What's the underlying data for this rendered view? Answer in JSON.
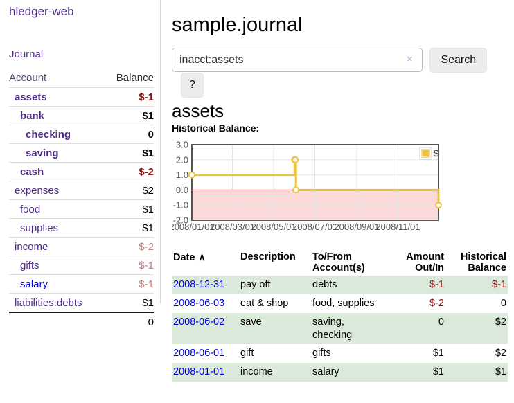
{
  "app": {
    "title": "hledger-web"
  },
  "sidebar": {
    "journal_link": "Journal",
    "accounts_table": {
      "account_header": "Account",
      "balance_header": "Balance",
      "rows": [
        {
          "name": "assets",
          "indent": 1,
          "bold": true,
          "balance": "$-1",
          "balance_style": "negative"
        },
        {
          "name": "bank",
          "indent": 2,
          "bold": true,
          "balance": "$1",
          "balance_style": "positive"
        },
        {
          "name": "checking",
          "indent": 3,
          "bold": true,
          "balance": "0",
          "balance_style": "positive"
        },
        {
          "name": "saving",
          "indent": 3,
          "bold": true,
          "balance": "$1",
          "balance_style": "positive"
        },
        {
          "name": "cash",
          "indent": 2,
          "bold": true,
          "balance": "$-2",
          "balance_style": "negative"
        },
        {
          "name": "expenses",
          "indent": 1,
          "bold": false,
          "balance": "$2",
          "balance_style": "positive"
        },
        {
          "name": "food",
          "indent": 2,
          "bold": false,
          "balance": "$1",
          "balance_style": "positive"
        },
        {
          "name": "supplies",
          "indent": 2,
          "bold": false,
          "balance": "$1",
          "balance_style": "positive"
        },
        {
          "name": "income",
          "indent": 1,
          "bold": false,
          "balance": "$-2",
          "balance_style": "negative-muted"
        },
        {
          "name": "gifts",
          "indent": 2,
          "bold": false,
          "balance": "$-1",
          "balance_style": "negative-muted"
        },
        {
          "name": "salary",
          "indent": 2,
          "bold": false,
          "link_style": "unvisited",
          "balance": "$-1",
          "balance_style": "negative-muted"
        },
        {
          "name": "liabilities:debts",
          "indent": 1,
          "bold": false,
          "balance": "$1",
          "balance_style": "positive"
        }
      ],
      "total": "0"
    }
  },
  "header": {
    "title": "sample.journal"
  },
  "search": {
    "value": "inacct:assets",
    "clear_icon": "×",
    "button_label": "Search",
    "help_label": "?"
  },
  "main": {
    "account_heading": "assets",
    "chart_label": "Historical Balance:"
  },
  "chart_data": {
    "type": "line",
    "title": "Historical Balance",
    "step": true,
    "series": [
      {
        "name": "$",
        "color": "#edc240",
        "points": [
          [
            "2008-01-01",
            1
          ],
          [
            "2008-06-01",
            2
          ],
          [
            "2008-06-02",
            2
          ],
          [
            "2008-06-03",
            0
          ],
          [
            "2008-12-31",
            -1
          ]
        ]
      }
    ],
    "x_domain": [
      "2008-01-01",
      "2008-12-31"
    ],
    "x_ticks": [
      "2008/01/01",
      "2008/03/01",
      "2008/05/01",
      "2008/07/01",
      "2008/09/01",
      "2008/11/01"
    ],
    "y_ticks": [
      3.0,
      2.0,
      1.0,
      0.0,
      -1.0,
      -2.0
    ],
    "ylim": [
      -2,
      3
    ],
    "grid": true,
    "legend": {
      "label": "$",
      "position": "top-right"
    },
    "negative_region_color": "#fbdada",
    "zero_line_color": "#7a0b0b",
    "axis_text_color": "#545454"
  },
  "register": {
    "columns": [
      "Date",
      "Description",
      "To/From Account(s)",
      "Amount Out/In",
      "Historical Balance"
    ],
    "sort_icon": "∧",
    "rows": [
      {
        "date": "2008-12-31",
        "description": "pay off",
        "accounts": "debts",
        "amount": "$-1",
        "amount_style": "negative",
        "balance": "$-1",
        "balance_style": "negative"
      },
      {
        "date": "2008-06-03",
        "description": "eat & shop",
        "accounts": "food, supplies",
        "amount": "$-2",
        "amount_style": "negative",
        "balance": "0",
        "balance_style": "positive"
      },
      {
        "date": "2008-06-02",
        "description": "save",
        "accounts": "saving, checking",
        "amount": "0",
        "amount_style": "positive",
        "balance": "$2",
        "balance_style": "positive"
      },
      {
        "date": "2008-06-01",
        "description": "gift",
        "accounts": "gifts",
        "amount": "$1",
        "amount_style": "positive",
        "balance": "$2",
        "balance_style": "positive"
      },
      {
        "date": "2008-01-01",
        "description": "income",
        "accounts": "salary",
        "amount": "$1",
        "amount_style": "positive",
        "balance": "$1",
        "balance_style": "positive"
      }
    ]
  },
  "colors": {
    "link_purple": "#512d8a",
    "link_blue": "#0000dd",
    "negative": "#8f1212",
    "negative_muted": "#c17d7f",
    "row_stripe_green": "#dbe9db",
    "chart_line_gold": "#edc240",
    "chart_negative_fill": "#fbdada",
    "chart_zero_line": "#7a0b0b",
    "button_gray": "#ececec"
  }
}
